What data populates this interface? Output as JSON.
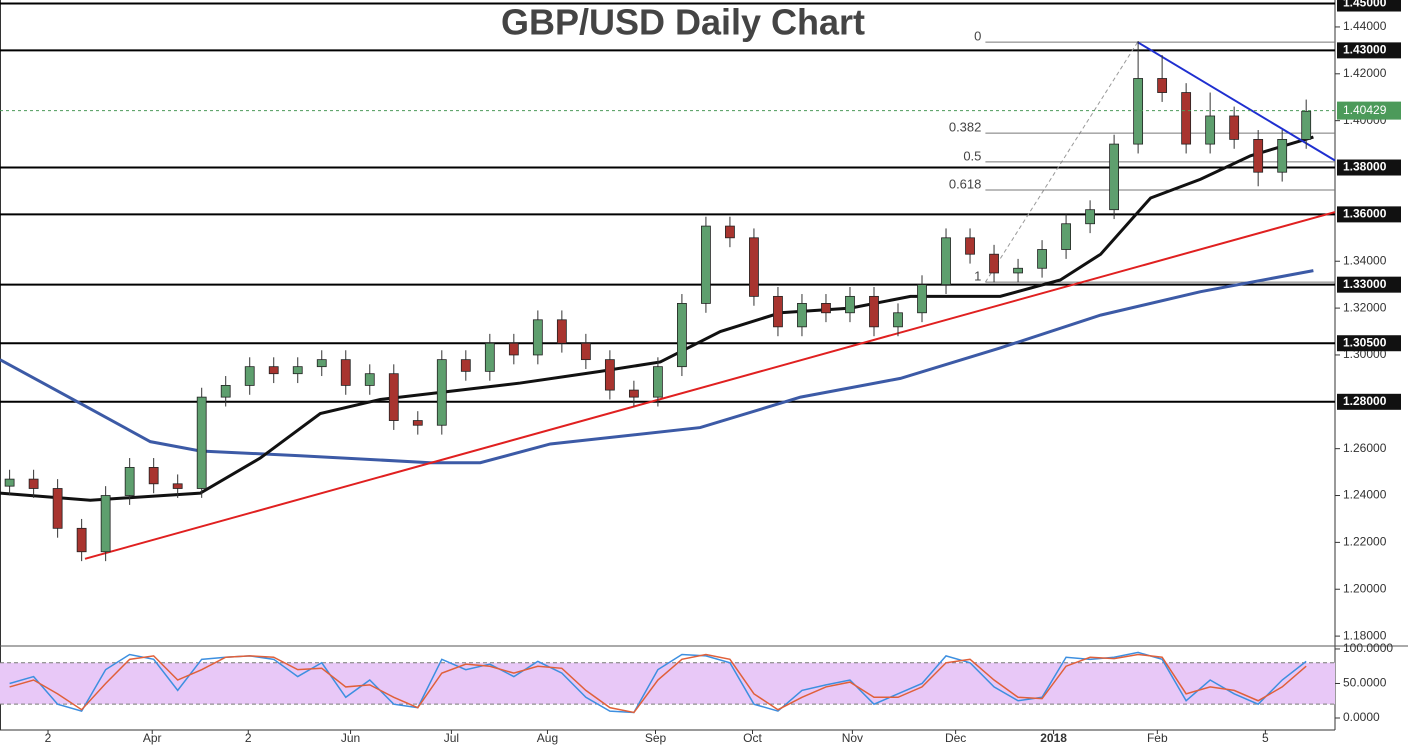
{
  "chart_data": [
    {
      "type": "candlestick",
      "title": "GBP/USD Daily Chart",
      "xlim": [
        0,
        278
      ],
      "ylim": [
        1.1762,
        1.4515
      ],
      "xticks": [
        {
          "value": 10,
          "label": "2"
        },
        {
          "value": 31.7,
          "label": "Apr"
        },
        {
          "value": 51.7,
          "label": "2"
        },
        {
          "value": 73,
          "label": "Jun"
        },
        {
          "value": 94,
          "label": "Jul"
        },
        {
          "value": 114,
          "label": "Aug"
        },
        {
          "value": 136.5,
          "label": "Sep"
        },
        {
          "value": 156.7,
          "label": "Oct"
        },
        {
          "value": 177.5,
          "label": "Nov"
        },
        {
          "value": 199,
          "label": "Dec"
        },
        {
          "value": 219.4,
          "label": "2018"
        },
        {
          "value": 241,
          "label": "Feb"
        },
        {
          "value": 263.5,
          "label": "5"
        }
      ],
      "yticks": [
        {
          "value": 1.44,
          "label": "1.44000"
        },
        {
          "value": 1.42,
          "label": "1.42000"
        },
        {
          "value": 1.4,
          "label": "1.40000"
        },
        {
          "value": 1.34,
          "label": "1.34000"
        },
        {
          "value": 1.32,
          "label": "1.32000"
        },
        {
          "value": 1.3,
          "label": "1.30000"
        },
        {
          "value": 1.26,
          "label": "1.26000"
        },
        {
          "value": 1.24,
          "label": "1.24000"
        },
        {
          "value": 1.22,
          "label": "1.22000"
        },
        {
          "value": 1.2,
          "label": "1.20000"
        },
        {
          "value": 1.18,
          "label": "1.18000"
        }
      ],
      "x": [
        2,
        7,
        12,
        17,
        22,
        27,
        32,
        37,
        42,
        47,
        52,
        57,
        62,
        67,
        72,
        77,
        82,
        87,
        92,
        97,
        102,
        107,
        112,
        117,
        122,
        127,
        132,
        137,
        142,
        147,
        152,
        157,
        162,
        167,
        172,
        177,
        182,
        187,
        192,
        197,
        202,
        207,
        212,
        217,
        222,
        227,
        232,
        237,
        242,
        247,
        252,
        257,
        262,
        267,
        272
      ],
      "open": [
        1.244,
        1.247,
        1.243,
        1.226,
        1.216,
        1.24,
        1.252,
        1.245,
        1.243,
        1.282,
        1.287,
        1.295,
        1.292,
        1.295,
        1.298,
        1.287,
        1.292,
        1.272,
        1.27,
        1.298,
        1.293,
        1.305,
        1.3,
        1.315,
        1.305,
        1.298,
        1.285,
        1.282,
        1.295,
        1.322,
        1.355,
        1.35,
        1.325,
        1.312,
        1.322,
        1.318,
        1.325,
        1.312,
        1.318,
        1.33,
        1.35,
        1.343,
        1.335,
        1.337,
        1.345,
        1.356,
        1.362,
        1.39,
        1.418,
        1.412,
        1.39,
        1.402,
        1.392,
        1.378,
        1.392
      ],
      "high": [
        1.251,
        1.251,
        1.247,
        1.23,
        1.244,
        1.256,
        1.256,
        1.249,
        1.286,
        1.291,
        1.299,
        1.299,
        1.299,
        1.302,
        1.302,
        1.296,
        1.296,
        1.276,
        1.302,
        1.302,
        1.309,
        1.309,
        1.319,
        1.319,
        1.309,
        1.302,
        1.289,
        1.299,
        1.326,
        1.359,
        1.359,
        1.354,
        1.329,
        1.326,
        1.326,
        1.329,
        1.329,
        1.322,
        1.334,
        1.354,
        1.354,
        1.347,
        1.341,
        1.349,
        1.36,
        1.366,
        1.394,
        1.434,
        1.428,
        1.416,
        1.412,
        1.406,
        1.396,
        1.396,
        1.409
      ],
      "low": [
        1.24,
        1.239,
        1.222,
        1.212,
        1.212,
        1.236,
        1.241,
        1.239,
        1.239,
        1.278,
        1.283,
        1.288,
        1.288,
        1.291,
        1.283,
        1.283,
        1.268,
        1.266,
        1.266,
        1.289,
        1.289,
        1.296,
        1.296,
        1.301,
        1.294,
        1.281,
        1.278,
        1.278,
        1.291,
        1.318,
        1.346,
        1.321,
        1.308,
        1.308,
        1.314,
        1.314,
        1.308,
        1.308,
        1.314,
        1.326,
        1.339,
        1.331,
        1.331,
        1.333,
        1.341,
        1.352,
        1.358,
        1.386,
        1.408,
        1.386,
        1.386,
        1.388,
        1.372,
        1.374,
        1.388
      ],
      "close": [
        1.247,
        1.243,
        1.226,
        1.216,
        1.24,
        1.252,
        1.245,
        1.243,
        1.282,
        1.287,
        1.295,
        1.292,
        1.295,
        1.298,
        1.287,
        1.292,
        1.272,
        1.27,
        1.298,
        1.293,
        1.305,
        1.3,
        1.315,
        1.305,
        1.298,
        1.285,
        1.282,
        1.295,
        1.322,
        1.355,
        1.35,
        1.325,
        1.312,
        1.322,
        1.318,
        1.325,
        1.312,
        1.318,
        1.33,
        1.35,
        1.343,
        1.335,
        1.337,
        1.345,
        1.356,
        1.362,
        1.39,
        1.418,
        1.412,
        1.39,
        1.402,
        1.392,
        1.378,
        1.392,
        1.404
      ],
      "up_color": "#5e9f6e",
      "down_color": "#a8342f",
      "series": [
        {
          "color": "#3c5aa6",
          "x": [
            0,
            18.8,
            31.3,
            41.7,
            62.5,
            89.6,
            100,
            114.6,
            145.8,
            166.7,
            187.5,
            208.3,
            229.2,
            250,
            273.5
          ],
          "values": [
            1.298,
            1.277,
            1.263,
            1.259,
            1.257,
            1.254,
            1.254,
            1.262,
            1.269,
            1.282,
            1.29,
            1.303,
            1.317,
            1.327,
            1.336
          ]
        },
        {
          "color": "#111111",
          "x": [
            0,
            18.8,
            41.7,
            54.2,
            66.7,
            79.2,
            95.8,
            108.3,
            125,
            137.5,
            150,
            162.5,
            177.1,
            189.6,
            200,
            208.3,
            220.8,
            229.2,
            239.6,
            250,
            260.4,
            273.5
          ],
          "values": [
            1.241,
            1.238,
            1.241,
            1.256,
            1.275,
            1.281,
            1.285,
            1.288,
            1.293,
            1.297,
            1.31,
            1.318,
            1.32,
            1.325,
            1.325,
            1.325,
            1.332,
            1.343,
            1.367,
            1.375,
            1.385,
            1.393
          ]
        }
      ],
      "levels": [
        {
          "value": 1.45,
          "label": "1.45000"
        },
        {
          "value": 1.43,
          "label": "1.43000"
        },
        {
          "value": 1.38,
          "label": "1.38000"
        },
        {
          "value": 1.36,
          "label": "1.36000"
        },
        {
          "value": 1.33,
          "label": "1.33000"
        },
        {
          "value": 1.305,
          "label": "1.30500"
        },
        {
          "value": 1.28,
          "label": "1.28000"
        }
      ],
      "last": {
        "value": 1.40429,
        "label": "1.40429",
        "color": "#4c9a5a"
      },
      "trendlines": [
        {
          "color": "#e02020",
          "x": [
            17.7,
            278
          ],
          "y": [
            1.213,
            1.361
          ]
        },
        {
          "color": "#1f2fd0",
          "x": [
            236.9,
            278
          ],
          "y": [
            1.4335,
            1.383
          ]
        }
      ],
      "fib": {
        "x": [
          205.2,
          236.9
        ],
        "y": [
          1.3311,
          1.4335
        ],
        "levels": [
          {
            "ratio": 0,
            "price": 1.4335
          },
          {
            "ratio": 0.382,
            "price": 1.3947
          },
          {
            "ratio": 0.5,
            "price": 1.3824
          },
          {
            "ratio": 0.618,
            "price": 1.3704
          },
          {
            "ratio": 1,
            "price": 1.3311
          }
        ]
      }
    },
    {
      "type": "line",
      "xlim": [
        0,
        278
      ],
      "ylim": [
        -17.4,
        104.3
      ],
      "yticks": [
        {
          "value": 100,
          "label": "100.0000"
        },
        {
          "value": 50,
          "label": "50.0000"
        },
        {
          "value": 0,
          "label": "0.0000"
        }
      ],
      "band": [
        20,
        80
      ],
      "band_color": "#e8c8f7",
      "x": [
        2,
        7,
        12,
        17,
        22,
        27,
        32,
        37,
        42,
        47,
        52,
        57,
        62,
        67,
        72,
        77,
        82,
        87,
        92,
        97,
        102,
        107,
        112,
        117,
        122,
        127,
        132,
        137,
        142,
        147,
        152,
        157,
        162,
        167,
        172,
        177,
        182,
        187,
        192,
        197,
        202,
        207,
        212,
        217,
        222,
        227,
        232,
        237,
        242,
        247,
        252,
        257,
        262,
        267,
        272
      ],
      "series": [
        {
          "color": "#3d8fe0",
          "values": [
            50,
            60,
            20,
            10,
            70,
            92,
            85,
            40,
            85,
            88,
            90,
            85,
            60,
            80,
            30,
            55,
            20,
            15,
            85,
            70,
            78,
            60,
            82,
            65,
            30,
            10,
            8,
            70,
            92,
            90,
            80,
            20,
            10,
            40,
            48,
            55,
            20,
            35,
            50,
            90,
            80,
            45,
            25,
            30,
            88,
            85,
            88,
            95,
            85,
            25,
            55,
            35,
            20,
            55,
            82
          ]
        },
        {
          "color": "#e0603a",
          "values": [
            45,
            55,
            35,
            12,
            50,
            85,
            90,
            55,
            70,
            88,
            90,
            88,
            70,
            72,
            45,
            48,
            30,
            15,
            65,
            78,
            75,
            65,
            75,
            72,
            40,
            15,
            8,
            55,
            85,
            92,
            85,
            35,
            12,
            30,
            45,
            52,
            30,
            30,
            45,
            80,
            85,
            55,
            30,
            28,
            75,
            88,
            86,
            92,
            88,
            35,
            45,
            40,
            25,
            45,
            75
          ]
        }
      ]
    }
  ]
}
